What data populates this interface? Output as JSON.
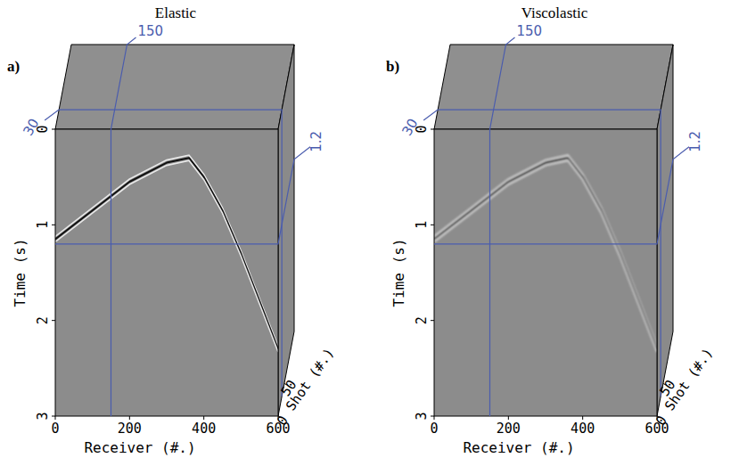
{
  "chart_data": [
    {
      "type": "cube",
      "title": "Elastic",
      "panel_label": "a)",
      "xlabel": "Receiver (#.)",
      "ylabel": "Time (s)",
      "zlabel": "Shot (#.)",
      "xlim": [
        0,
        600
      ],
      "xticks": [
        0,
        200,
        400,
        600
      ],
      "ylim": [
        0,
        3
      ],
      "yticks": [
        0,
        1,
        2,
        3
      ],
      "zlim": [
        0,
        130
      ],
      "zticks": [
        0,
        50
      ],
      "slices": {
        "x": 150,
        "y": 1.2,
        "z": 30
      },
      "x": [
        0,
        100,
        200,
        300,
        360,
        400,
        450,
        500,
        550,
        600
      ],
      "values": [
        1.15,
        0.85,
        0.55,
        0.35,
        0.3,
        0.5,
        0.85,
        1.3,
        1.8,
        2.3
      ],
      "color": "#111111",
      "line_style": "sharp"
    },
    {
      "type": "cube",
      "title": "Viscolastic",
      "panel_label": "b)",
      "xlabel": "Receiver (#.)",
      "ylabel": "Time (s)",
      "zlabel": "Shot (#.)",
      "xlim": [
        0,
        600
      ],
      "xticks": [
        0,
        200,
        400,
        600
      ],
      "ylim": [
        0,
        3
      ],
      "yticks": [
        0,
        1,
        2,
        3
      ],
      "zlim": [
        0,
        130
      ],
      "zticks": [
        0,
        50
      ],
      "slices": {
        "x": 150,
        "y": 1.2,
        "z": 30
      },
      "x": [
        0,
        100,
        200,
        300,
        360,
        400,
        450,
        500,
        550,
        600
      ],
      "values": [
        1.15,
        0.85,
        0.55,
        0.35,
        0.3,
        0.5,
        0.85,
        1.3,
        1.8,
        2.3
      ],
      "color": "#111111",
      "line_style": "smooth"
    }
  ]
}
